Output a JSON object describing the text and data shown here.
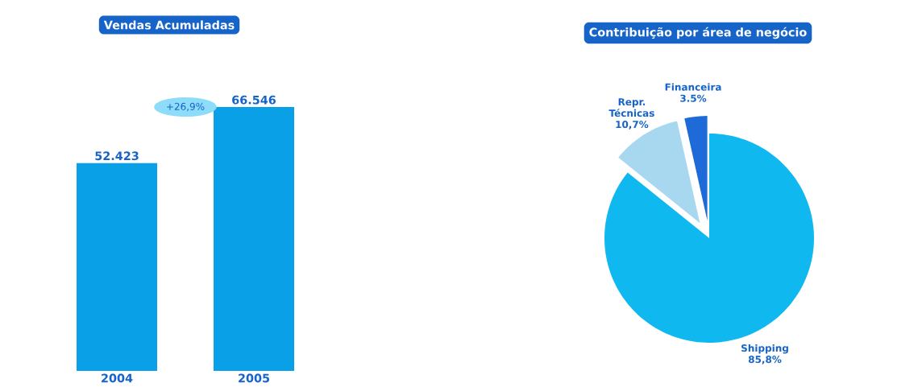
{
  "chart_data": [
    {
      "type": "bar",
      "title": "Vendas Acumuladas",
      "categories": [
        "2004",
        "2005"
      ],
      "values": [
        52423,
        66546
      ],
      "value_labels": [
        "52.423",
        "66.546"
      ],
      "color": "#0aa0e8",
      "annotations": [
        "+26,9%"
      ]
    },
    {
      "type": "pie",
      "title": "Contribuição por área de negócio",
      "categories": [
        "Shipping",
        "Repr. Técnicas",
        "Financeira"
      ],
      "values": [
        85.8,
        10.7,
        3.5
      ],
      "value_labels": [
        "85,8%",
        "10,7%",
        "3.5%"
      ],
      "colors": [
        "#10b8f0",
        "#a8d8f0",
        "#1e6ad8"
      ]
    }
  ]
}
